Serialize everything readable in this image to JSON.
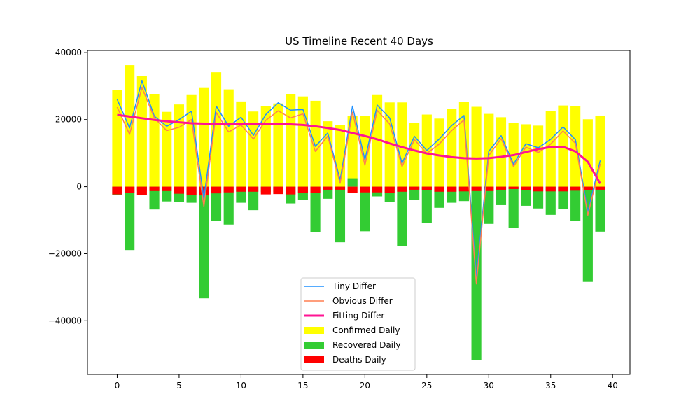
{
  "chart_data": {
    "type": "bar",
    "title": "US Timeline Recent 40 Days",
    "xlabel": "",
    "ylabel": "",
    "xlim": [
      -2.4,
      41.4
    ],
    "ylim": [
      -56000,
      40600
    ],
    "x_ticks": [
      0,
      5,
      10,
      15,
      20,
      25,
      30,
      35,
      40
    ],
    "y_ticks": [
      -40000,
      -20000,
      0,
      20000,
      40000
    ],
    "x_tick_labels": [
      "0",
      "5",
      "10",
      "15",
      "20",
      "25",
      "30",
      "35",
      "40"
    ],
    "y_tick_labels": [
      "−40000",
      "−20000",
      "0",
      "20000",
      "40000"
    ],
    "legend_position": "lower-center",
    "x": [
      0,
      1,
      2,
      3,
      4,
      5,
      6,
      7,
      8,
      9,
      10,
      11,
      12,
      13,
      14,
      15,
      16,
      17,
      18,
      19,
      20,
      21,
      22,
      23,
      24,
      25,
      26,
      27,
      28,
      29,
      30,
      31,
      32,
      33,
      34,
      35,
      36,
      37,
      38,
      39
    ],
    "bar_series": [
      {
        "name": "Confirmed Daily",
        "color": "#ffff00",
        "values": [
          28800,
          36200,
          32900,
          27500,
          22300,
          24500,
          27300,
          29400,
          34100,
          29000,
          25400,
          22400,
          24100,
          24800,
          27600,
          26900,
          25600,
          19500,
          18400,
          21200,
          21000,
          27300,
          25100,
          25100,
          19000,
          21500,
          20300,
          23100,
          25300,
          23800,
          21700,
          20700,
          19000,
          18600,
          18200,
          22500,
          24200,
          24000,
          20100,
          21200
        ]
      },
      {
        "name": "Recovered Daily",
        "color": "#33cc33",
        "values": [
          -2500,
          -18900,
          -1200,
          -6800,
          -4400,
          -4500,
          -4800,
          -33300,
          -10100,
          -11300,
          -4800,
          -7000,
          -1600,
          -1600,
          -5000,
          -4000,
          -13600,
          -3600,
          -16600,
          2500,
          -13300,
          -2900,
          -4600,
          -17700,
          -3900,
          -10900,
          -6300,
          -4800,
          -4300,
          -51700,
          -11100,
          -5500,
          -12300,
          -5700,
          -6500,
          -8400,
          -6600,
          -10100,
          -28400,
          -13400
        ]
      },
      {
        "name": "Deaths Daily",
        "color": "#ff0000",
        "values": [
          -2300,
          -1800,
          -2400,
          -1300,
          -1300,
          -2100,
          -2500,
          -2600,
          -2000,
          -1700,
          -1500,
          -1500,
          -2300,
          -2200,
          -2300,
          -1800,
          -1800,
          -900,
          -900,
          -1800,
          -1700,
          -1700,
          -1800,
          -1500,
          -900,
          -1100,
          -1500,
          -1500,
          -1400,
          -1300,
          -1300,
          -900,
          -700,
          -1000,
          -1400,
          -1400,
          -1400,
          -1200,
          -1000,
          -900
        ]
      }
    ],
    "line_series": [
      {
        "name": "Tiny Differ",
        "color": "#1e90ff",
        "width": 1.5,
        "values": [
          26000,
          17500,
          31500,
          21000,
          18000,
          20000,
          22500,
          -3500,
          24000,
          18000,
          20700,
          15300,
          21500,
          25000,
          22800,
          23000,
          12000,
          16000,
          2000,
          24000,
          8000,
          24300,
          20500,
          7000,
          15000,
          10800,
          14200,
          18200,
          21200,
          -27000,
          10500,
          15200,
          6700,
          12800,
          11600,
          14100,
          17800,
          14000,
          -7500,
          7800
        ]
      },
      {
        "name": "Obvious Differ",
        "color": "#ff7f50",
        "width": 1.5,
        "values": [
          23700,
          15600,
          29500,
          20500,
          16700,
          17700,
          20000,
          -5900,
          22100,
          16300,
          18400,
          14200,
          19800,
          22600,
          20500,
          21700,
          10500,
          15100,
          1000,
          22200,
          6400,
          22700,
          18700,
          6000,
          14000,
          9900,
          12700,
          16700,
          19900,
          -29000,
          9300,
          14300,
          6000,
          11800,
          10200,
          12700,
          16600,
          12900,
          -8500,
          6800
        ]
      },
      {
        "name": "Fitting Differ",
        "color": "#ff1493",
        "width": 3,
        "values": [
          21400,
          20900,
          20400,
          19900,
          19500,
          19200,
          18900,
          18800,
          18700,
          18700,
          18700,
          18700,
          18700,
          18700,
          18600,
          18400,
          18000,
          17500,
          16900,
          16000,
          15100,
          14100,
          12900,
          11800,
          10800,
          9900,
          9300,
          8800,
          8500,
          8400,
          8500,
          8900,
          9400,
          10300,
          11200,
          11800,
          11900,
          10500,
          7400,
          900
        ]
      }
    ]
  }
}
